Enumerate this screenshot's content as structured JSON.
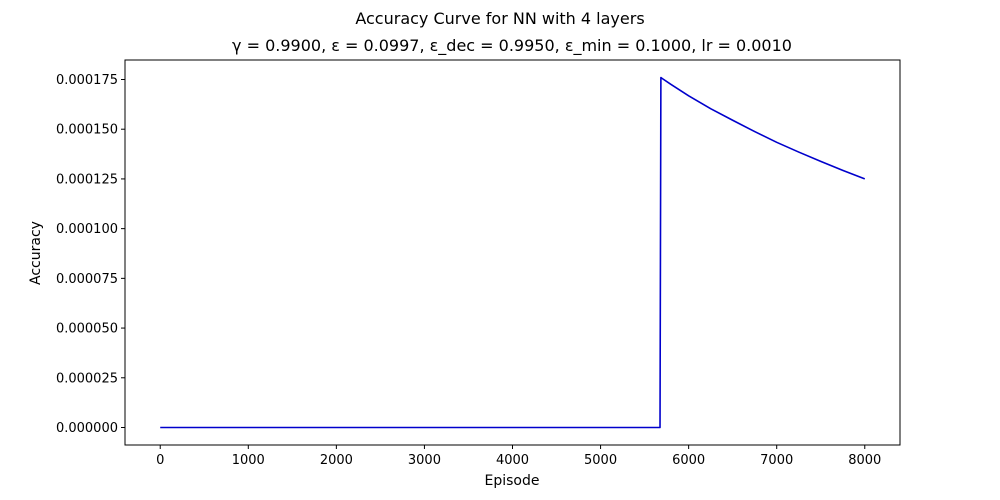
{
  "chart_data": {
    "type": "line",
    "title": "Accuracy Curve for NN with 4 layers",
    "subtitle": "γ = 0.9900, ε = 0.0997, ε_dec = 0.9950, ε_min = 0.1000, lr = 0.0010",
    "xlabel": "Episode",
    "ylabel": "Accuracy",
    "xlim": [
      -400,
      8400
    ],
    "ylim": [
      -8.8e-06,
      0.0001848
    ],
    "x_ticks": [
      0,
      1000,
      2000,
      3000,
      4000,
      5000,
      6000,
      7000,
      8000
    ],
    "x_tick_labels": [
      "0",
      "1000",
      "2000",
      "3000",
      "4000",
      "5000",
      "6000",
      "7000",
      "8000"
    ],
    "y_ticks": [
      0,
      2.5e-05,
      5e-05,
      7.5e-05,
      0.0001,
      0.000125,
      0.00015,
      0.000175
    ],
    "y_tick_labels": [
      "0.000000",
      "0.000025",
      "0.000050",
      "0.000075",
      "0.000100",
      "0.000125",
      "0.000150",
      "0.000175"
    ],
    "grid": false,
    "series": [
      {
        "color": "#0000cc",
        "x": [
          0,
          5675,
          5685,
          5700,
          5800,
          6000,
          6250,
          6500,
          6750,
          7000,
          7250,
          7500,
          7750,
          8000
        ],
        "y": [
          0,
          0,
          0.000176,
          0.0001755,
          0.0001725,
          0.0001668,
          0.0001603,
          0.0001545,
          0.0001488,
          0.0001434,
          0.0001385,
          0.0001338,
          0.0001293,
          0.000125
        ]
      }
    ]
  }
}
